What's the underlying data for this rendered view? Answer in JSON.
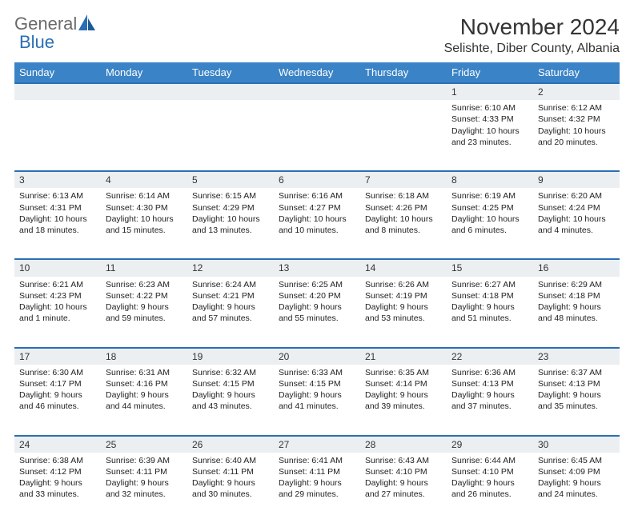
{
  "logo": {
    "general": "General",
    "blue": "Blue"
  },
  "title": "November 2024",
  "location": "Selishte, Diber County, Albania",
  "header_bg": "#3a83c6",
  "accent": "#2a6fb5",
  "daynum_bg": "#ebeff2",
  "text_color": "#222222",
  "columns": [
    "Sunday",
    "Monday",
    "Tuesday",
    "Wednesday",
    "Thursday",
    "Friday",
    "Saturday"
  ],
  "weeks": [
    [
      null,
      null,
      null,
      null,
      null,
      {
        "n": "1",
        "sr": "Sunrise: 6:10 AM",
        "ss": "Sunset: 4:33 PM",
        "d1": "Daylight: 10 hours",
        "d2": "and 23 minutes."
      },
      {
        "n": "2",
        "sr": "Sunrise: 6:12 AM",
        "ss": "Sunset: 4:32 PM",
        "d1": "Daylight: 10 hours",
        "d2": "and 20 minutes."
      }
    ],
    [
      {
        "n": "3",
        "sr": "Sunrise: 6:13 AM",
        "ss": "Sunset: 4:31 PM",
        "d1": "Daylight: 10 hours",
        "d2": "and 18 minutes."
      },
      {
        "n": "4",
        "sr": "Sunrise: 6:14 AM",
        "ss": "Sunset: 4:30 PM",
        "d1": "Daylight: 10 hours",
        "d2": "and 15 minutes."
      },
      {
        "n": "5",
        "sr": "Sunrise: 6:15 AM",
        "ss": "Sunset: 4:29 PM",
        "d1": "Daylight: 10 hours",
        "d2": "and 13 minutes."
      },
      {
        "n": "6",
        "sr": "Sunrise: 6:16 AM",
        "ss": "Sunset: 4:27 PM",
        "d1": "Daylight: 10 hours",
        "d2": "and 10 minutes."
      },
      {
        "n": "7",
        "sr": "Sunrise: 6:18 AM",
        "ss": "Sunset: 4:26 PM",
        "d1": "Daylight: 10 hours",
        "d2": "and 8 minutes."
      },
      {
        "n": "8",
        "sr": "Sunrise: 6:19 AM",
        "ss": "Sunset: 4:25 PM",
        "d1": "Daylight: 10 hours",
        "d2": "and 6 minutes."
      },
      {
        "n": "9",
        "sr": "Sunrise: 6:20 AM",
        "ss": "Sunset: 4:24 PM",
        "d1": "Daylight: 10 hours",
        "d2": "and 4 minutes."
      }
    ],
    [
      {
        "n": "10",
        "sr": "Sunrise: 6:21 AM",
        "ss": "Sunset: 4:23 PM",
        "d1": "Daylight: 10 hours",
        "d2": "and 1 minute."
      },
      {
        "n": "11",
        "sr": "Sunrise: 6:23 AM",
        "ss": "Sunset: 4:22 PM",
        "d1": "Daylight: 9 hours",
        "d2": "and 59 minutes."
      },
      {
        "n": "12",
        "sr": "Sunrise: 6:24 AM",
        "ss": "Sunset: 4:21 PM",
        "d1": "Daylight: 9 hours",
        "d2": "and 57 minutes."
      },
      {
        "n": "13",
        "sr": "Sunrise: 6:25 AM",
        "ss": "Sunset: 4:20 PM",
        "d1": "Daylight: 9 hours",
        "d2": "and 55 minutes."
      },
      {
        "n": "14",
        "sr": "Sunrise: 6:26 AM",
        "ss": "Sunset: 4:19 PM",
        "d1": "Daylight: 9 hours",
        "d2": "and 53 minutes."
      },
      {
        "n": "15",
        "sr": "Sunrise: 6:27 AM",
        "ss": "Sunset: 4:18 PM",
        "d1": "Daylight: 9 hours",
        "d2": "and 51 minutes."
      },
      {
        "n": "16",
        "sr": "Sunrise: 6:29 AM",
        "ss": "Sunset: 4:18 PM",
        "d1": "Daylight: 9 hours",
        "d2": "and 48 minutes."
      }
    ],
    [
      {
        "n": "17",
        "sr": "Sunrise: 6:30 AM",
        "ss": "Sunset: 4:17 PM",
        "d1": "Daylight: 9 hours",
        "d2": "and 46 minutes."
      },
      {
        "n": "18",
        "sr": "Sunrise: 6:31 AM",
        "ss": "Sunset: 4:16 PM",
        "d1": "Daylight: 9 hours",
        "d2": "and 44 minutes."
      },
      {
        "n": "19",
        "sr": "Sunrise: 6:32 AM",
        "ss": "Sunset: 4:15 PM",
        "d1": "Daylight: 9 hours",
        "d2": "and 43 minutes."
      },
      {
        "n": "20",
        "sr": "Sunrise: 6:33 AM",
        "ss": "Sunset: 4:15 PM",
        "d1": "Daylight: 9 hours",
        "d2": "and 41 minutes."
      },
      {
        "n": "21",
        "sr": "Sunrise: 6:35 AM",
        "ss": "Sunset: 4:14 PM",
        "d1": "Daylight: 9 hours",
        "d2": "and 39 minutes."
      },
      {
        "n": "22",
        "sr": "Sunrise: 6:36 AM",
        "ss": "Sunset: 4:13 PM",
        "d1": "Daylight: 9 hours",
        "d2": "and 37 minutes."
      },
      {
        "n": "23",
        "sr": "Sunrise: 6:37 AM",
        "ss": "Sunset: 4:13 PM",
        "d1": "Daylight: 9 hours",
        "d2": "and 35 minutes."
      }
    ],
    [
      {
        "n": "24",
        "sr": "Sunrise: 6:38 AM",
        "ss": "Sunset: 4:12 PM",
        "d1": "Daylight: 9 hours",
        "d2": "and 33 minutes."
      },
      {
        "n": "25",
        "sr": "Sunrise: 6:39 AM",
        "ss": "Sunset: 4:11 PM",
        "d1": "Daylight: 9 hours",
        "d2": "and 32 minutes."
      },
      {
        "n": "26",
        "sr": "Sunrise: 6:40 AM",
        "ss": "Sunset: 4:11 PM",
        "d1": "Daylight: 9 hours",
        "d2": "and 30 minutes."
      },
      {
        "n": "27",
        "sr": "Sunrise: 6:41 AM",
        "ss": "Sunset: 4:11 PM",
        "d1": "Daylight: 9 hours",
        "d2": "and 29 minutes."
      },
      {
        "n": "28",
        "sr": "Sunrise: 6:43 AM",
        "ss": "Sunset: 4:10 PM",
        "d1": "Daylight: 9 hours",
        "d2": "and 27 minutes."
      },
      {
        "n": "29",
        "sr": "Sunrise: 6:44 AM",
        "ss": "Sunset: 4:10 PM",
        "d1": "Daylight: 9 hours",
        "d2": "and 26 minutes."
      },
      {
        "n": "30",
        "sr": "Sunrise: 6:45 AM",
        "ss": "Sunset: 4:09 PM",
        "d1": "Daylight: 9 hours",
        "d2": "and 24 minutes."
      }
    ]
  ]
}
